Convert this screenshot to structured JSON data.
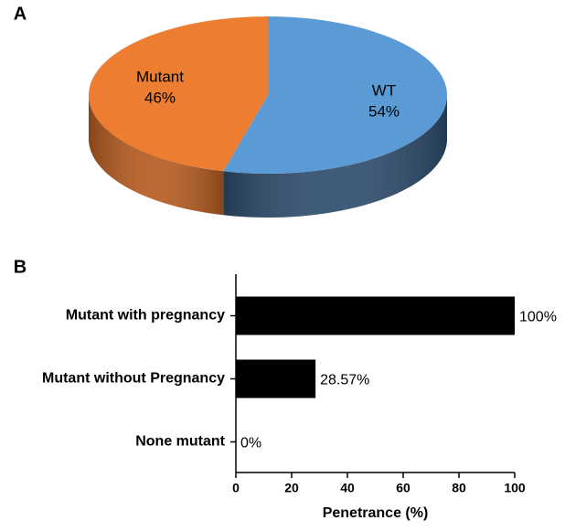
{
  "chart_data": [
    {
      "type": "pie",
      "panel_label": "A",
      "categories": [
        "WT",
        "Mutant"
      ],
      "values": [
        54,
        46
      ],
      "value_labels": [
        "54%",
        "46%"
      ],
      "colors": [
        "#5b9bd5",
        "#ed7d31"
      ],
      "side_colors": [
        "#2e4d6e",
        "#b65c20"
      ]
    },
    {
      "type": "hbar",
      "panel_label": "B",
      "categories": [
        "Mutant with pregnancy",
        "Mutant without Pregnancy",
        "None mutant"
      ],
      "values": [
        100,
        28.57,
        0
      ],
      "value_labels": [
        "100%",
        "28.57%",
        "0%"
      ],
      "color": "#000000",
      "xlabel": "Penetrance (%)",
      "xlim": [
        0,
        100
      ],
      "xticks": [
        0,
        20,
        40,
        60,
        80,
        100
      ]
    }
  ]
}
